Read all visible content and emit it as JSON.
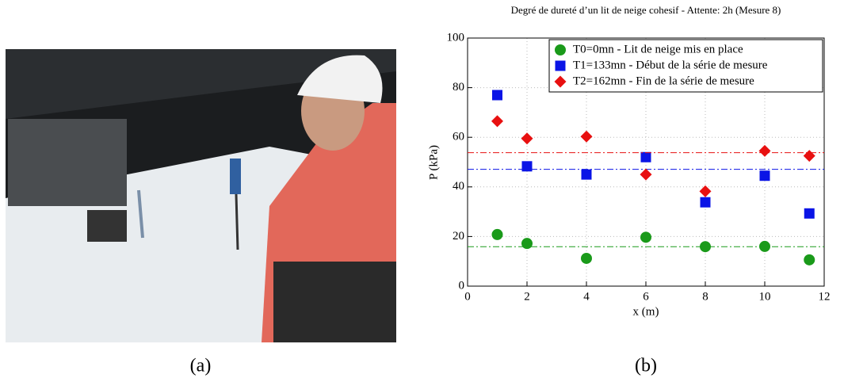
{
  "captions": [
    "(a)",
    "(b)"
  ],
  "chart_data": {
    "type": "scatter",
    "title": "Degré de dureté d’un lit de neige cohesif - Attente: 2h (Mesure 8)",
    "x_label": "x (m)",
    "y_label": "P (kPa)",
    "x": [
      1,
      2,
      4,
      6,
      8,
      10,
      11.5
    ],
    "series": [
      {
        "name": "T0=0mn - Lit de neige mis en place",
        "color": "#1a9a1a",
        "marker": "circle",
        "values": [
          20.8,
          17.2,
          11.2,
          19.7,
          15.9,
          16,
          10.6
        ],
        "reference": 15.9
      },
      {
        "name": "T1=133mn - Début de la série de mesure",
        "color": "#0a14e6",
        "marker": "square",
        "values": [
          77,
          48.3,
          45,
          52,
          33.8,
          44.5,
          29.3
        ],
        "reference": 47.1
      },
      {
        "name": "T2=162mn - Fin de la série de mesure",
        "color": "#e81010",
        "marker": "diamond",
        "values": [
          66.5,
          59.5,
          60.3,
          45,
          38.2,
          54.5,
          52.5
        ],
        "reference": 53.8
      }
    ],
    "xlim": [
      0,
      12
    ],
    "ylim": [
      0,
      100
    ],
    "xticks": [
      0,
      2,
      4,
      6,
      8,
      10,
      12
    ],
    "yticks": [
      0,
      20,
      40,
      60,
      80,
      100
    ],
    "grid": true,
    "legend": "top-right"
  }
}
